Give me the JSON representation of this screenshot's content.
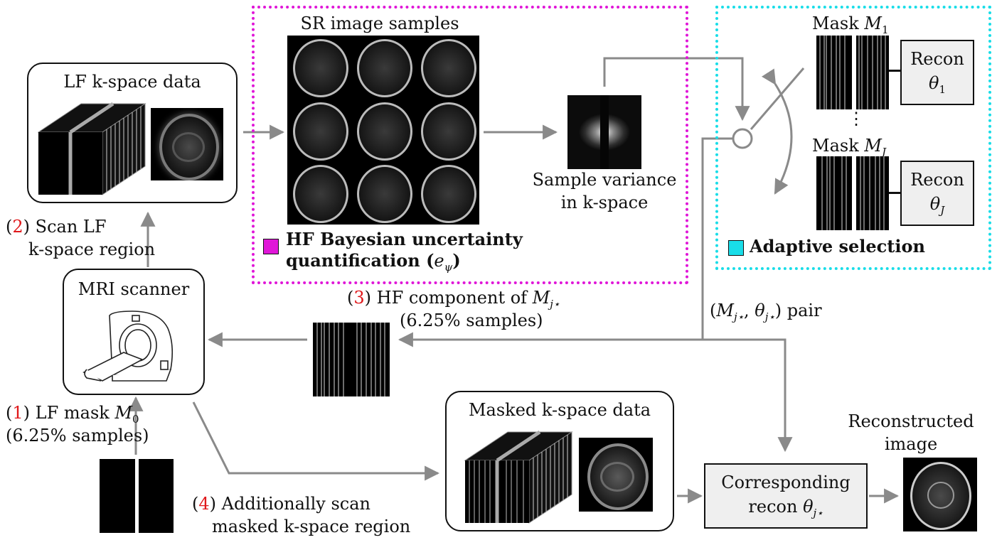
{
  "lf_box": {
    "title": "LF k-space data"
  },
  "sr_section": {
    "title": "SR image samples",
    "legend": "HF Bayesian uncertainty",
    "legend_line2_text": "quantification (",
    "legend_symbol": "e",
    "legend_sub": "ψ",
    "legend_close": ")",
    "color": "#e016d8"
  },
  "variance": {
    "line1": "Sample variance",
    "line2": "in k-space"
  },
  "adaptive": {
    "mask1_text": "Mask ",
    "mask1_sym": "M",
    "mask1_sub": "1",
    "maskj_text": "Mask ",
    "maskj_sym": "M",
    "maskj_sub": "J",
    "recon1_label": "Recon",
    "recon1_sym": "θ",
    "recon1_sub": "1",
    "reconj_label": "Recon",
    "reconj_sym": "θ",
    "reconj_sub": "J",
    "dots": "⋮",
    "legend": "Adaptive selection",
    "color": "#19dde8"
  },
  "step2": {
    "num": "2",
    "line1": "Scan LF",
    "line2": "k-space region"
  },
  "mri": {
    "title": "MRI scanner"
  },
  "step3": {
    "num": "3",
    "line1_text": "HF component of ",
    "sym": "M",
    "sub": "j⋆",
    "line2": "(6.25% samples)"
  },
  "pair": {
    "open": "(",
    "m": "M",
    "m_sub": "j⋆",
    "comma": ", ",
    "t": "θ",
    "t_sub": "j⋆",
    "close": ") pair"
  },
  "step1": {
    "num": "1",
    "line1_text": "LF mask ",
    "sym": "M",
    "sub": "0",
    "line2": "(6.25% samples)"
  },
  "masked_box": {
    "title": "Masked k-space data"
  },
  "step4": {
    "num": "4",
    "line1": "Additionally scan",
    "line2": "masked k-space region"
  },
  "corr": {
    "line1": "Corresponding",
    "line2_text": "recon ",
    "sym": "θ",
    "sub": "j⋆"
  },
  "reconstructed": {
    "line1": "Reconstructed",
    "line2": "image"
  },
  "colors": {
    "arrow": "#8a8a8a",
    "red": "#e0181b"
  }
}
